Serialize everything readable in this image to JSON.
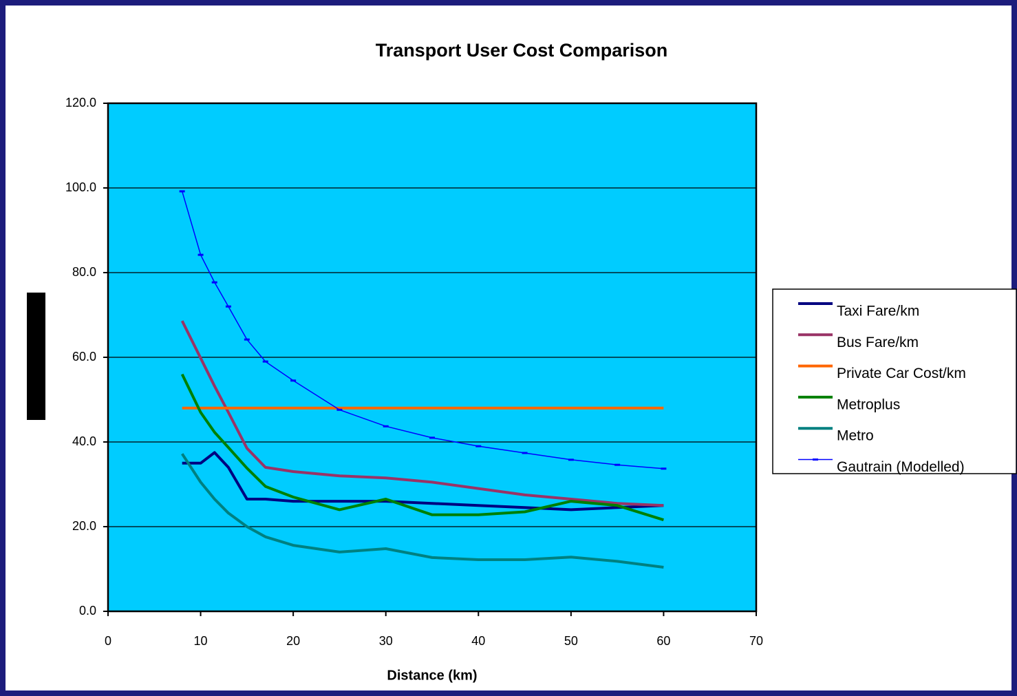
{
  "chart_data": {
    "type": "line",
    "title": "Transport User Cost Comparison",
    "x_label": "Distance (km)",
    "x": [
      8,
      10,
      11.5,
      13,
      15,
      17,
      20,
      25,
      30,
      35,
      40,
      45,
      50,
      55,
      60
    ],
    "xlim": [
      0,
      70
    ],
    "xticks": [
      0,
      10,
      20,
      30,
      40,
      50,
      60,
      70
    ],
    "ylim": [
      0,
      120
    ],
    "yticks": [
      {
        "value": 0,
        "label": "0.0"
      },
      {
        "value": 20,
        "label": "20.0"
      },
      {
        "value": 40,
        "label": "40.0"
      },
      {
        "value": 60,
        "label": "60.0"
      },
      {
        "value": 80,
        "label": "80.0"
      },
      {
        "value": 100,
        "label": "100.0"
      },
      {
        "value": 120,
        "label": "120.0"
      }
    ],
    "grid": true,
    "legend": "right",
    "series": [
      {
        "name": "Taxi Fare/km",
        "color": "#000080",
        "values": [
          35,
          35,
          37.5,
          34,
          26.5,
          26.5,
          26,
          26,
          26,
          25.5,
          25,
          24.5,
          24,
          24.5,
          25
        ]
      },
      {
        "name": "Bus Fare/km",
        "color": "#993366",
        "values": [
          68.6,
          59.8,
          53.2,
          47,
          38.5,
          34,
          33,
          32,
          31.5,
          30.5,
          29,
          27.5,
          26.5,
          25.5,
          25
        ]
      },
      {
        "name": "Private Car Cost/km",
        "color": "#ff6600",
        "values": [
          48,
          48,
          48,
          48,
          48,
          48,
          48,
          48,
          48,
          48,
          48,
          48,
          48,
          48,
          48
        ]
      },
      {
        "name": "Metroplus",
        "color": "#008000",
        "values": [
          56,
          47,
          42.3,
          38.7,
          33.8,
          29.5,
          27,
          24,
          26.5,
          22.8,
          22.8,
          23.5,
          26,
          25,
          21.6
        ]
      },
      {
        "name": "Metro",
        "color": "#008080",
        "values": [
          37.2,
          30.5,
          26.5,
          23.2,
          20,
          17.6,
          15.6,
          14,
          14.8,
          12.7,
          12.2,
          12.2,
          12.8,
          11.8,
          10.4
        ]
      },
      {
        "name": "Gautrain (Modelled)",
        "color": "#0000ff",
        "values": [
          99.2,
          84.2,
          77.7,
          72,
          64.2,
          59,
          54.5,
          47.6,
          43.7,
          41,
          39,
          37.4,
          35.8,
          34.6,
          33.7
        ]
      }
    ]
  }
}
